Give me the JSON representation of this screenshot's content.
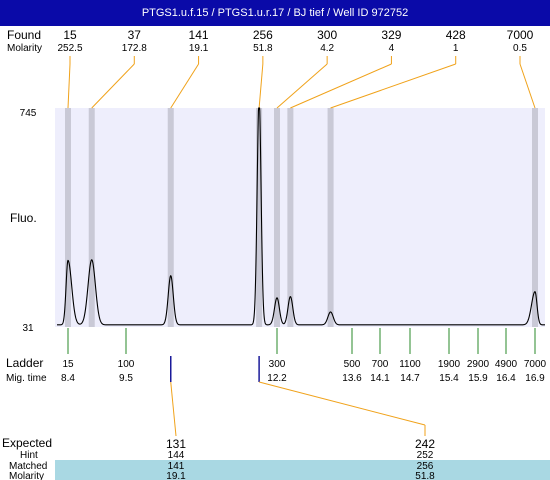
{
  "window_title": "PTGS1.u.f.15 / PTGS1.u.r.17 / BJ tief / Well ID 972752",
  "labels": {
    "found": "Found",
    "molarity": "Molarity",
    "fluo": "Fluo.",
    "ladder": "Ladder",
    "mig_time": "Mig. time",
    "expected": "Expected",
    "hint": "Hint",
    "matched": "Matched",
    "molarity_row": "Molarity"
  },
  "colors": {
    "title_bar": "#0a0aa8",
    "plot_bg": "#eeeefc",
    "peak_band": "#c9c9d6",
    "connector": "#f0a21a",
    "ladder_tick": "#2a8a2a",
    "marker_tick": "#1a1a9a",
    "highlight_row": "#a9d8e3"
  },
  "chart_data": {
    "type": "line",
    "ylim": [
      31,
      745
    ],
    "yticks": [
      "745",
      "31"
    ],
    "ylabel": "Fluo.",
    "peaks_found": [
      {
        "size": "15",
        "molarity": "252.5",
        "time": 8.4
      },
      {
        "size": "37",
        "molarity": "172.8",
        "time": 8.85
      },
      {
        "size": "141",
        "molarity": "19.1",
        "time": 10.3
      },
      {
        "size": "256",
        "molarity": "51.8",
        "time": 11.88
      },
      {
        "size": "300",
        "molarity": "4.2",
        "time": 12.2
      },
      {
        "size": "329",
        "molarity": "4",
        "time": 12.45
      },
      {
        "size": "428",
        "molarity": "1",
        "time": 13.2
      },
      {
        "size": "7000",
        "molarity": "0.5",
        "time": 16.9
      }
    ],
    "ladder": [
      {
        "size": "15",
        "time": "8.4"
      },
      {
        "size": "100",
        "time": "9.5"
      },
      {
        "size": "300",
        "time": "12.2"
      },
      {
        "size": "500",
        "time": "13.6"
      },
      {
        "size": "700",
        "time": "14.1"
      },
      {
        "size": "1100",
        "time": "14.7"
      },
      {
        "size": "1900",
        "time": "15.4"
      },
      {
        "size": "2900",
        "time": "15.9"
      },
      {
        "size": "4900",
        "time": "16.4"
      },
      {
        "size": "7000",
        "time": "16.9"
      }
    ],
    "expected": [
      {
        "expected": "131",
        "hint": "144",
        "matched": "141",
        "molarity": "19.1",
        "time": 10.3
      },
      {
        "expected": "242",
        "hint": "252",
        "matched": "256",
        "molarity": "51.8",
        "time": 11.88
      }
    ],
    "trace": {
      "baseline": 38,
      "peaks": [
        {
          "time": 8.4,
          "height": 210,
          "width": 0.07
        },
        {
          "time": 8.85,
          "height": 212,
          "width": 0.07
        },
        {
          "time": 10.3,
          "height": 160,
          "width": 0.045
        },
        {
          "time": 11.88,
          "height": 740,
          "width": 0.035
        },
        {
          "time": 12.2,
          "height": 88,
          "width": 0.045
        },
        {
          "time": 12.45,
          "height": 92,
          "width": 0.045
        },
        {
          "time": 13.2,
          "height": 42,
          "width": 0.05
        },
        {
          "time": 16.9,
          "height": 108,
          "width": 0.06
        }
      ]
    }
  }
}
